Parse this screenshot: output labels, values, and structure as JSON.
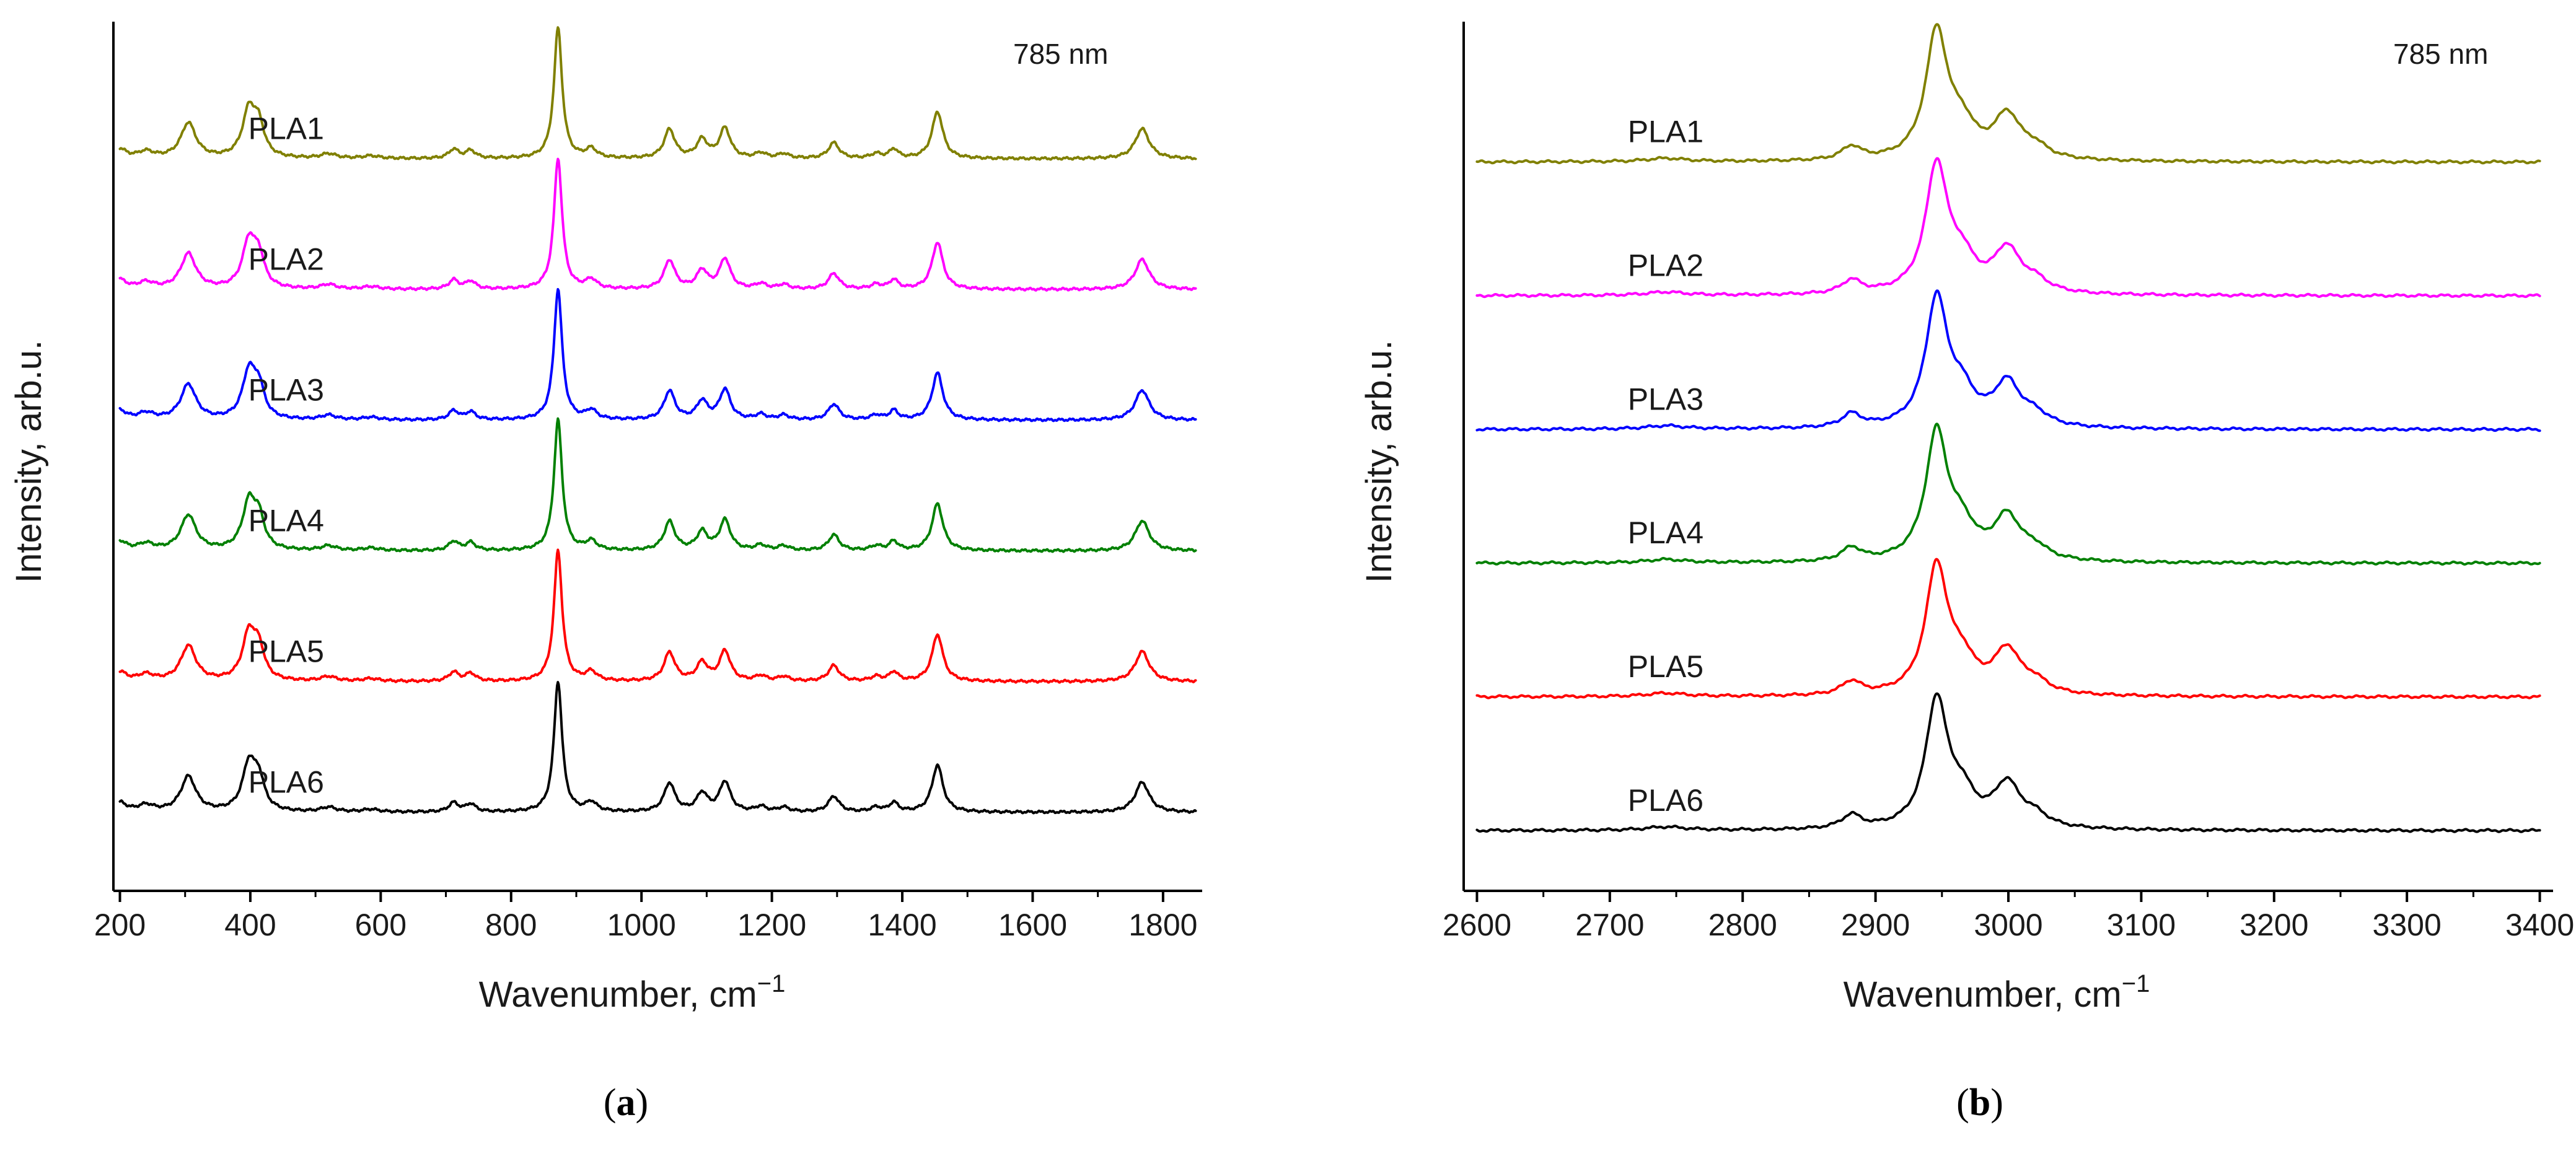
{
  "chart_data": [
    {
      "type": "line",
      "panel": "a",
      "panel_label": "a",
      "annotation": "785 nm",
      "xlabel": "Wavenumber, cm",
      "xlabel_sup": "−1",
      "ylabel": "Intensity, arb.u.",
      "xlim": [
        190,
        1860
      ],
      "ylim": [
        -0.6,
        6.05
      ],
      "xticks": [
        200,
        400,
        600,
        800,
        1000,
        1200,
        1400,
        1600,
        1800
      ],
      "xtick_labels": [
        "200",
        "400",
        "600",
        "800",
        "1000",
        "1200",
        "1400",
        "1600",
        "1800"
      ],
      "x_range": [
        200,
        1850
      ],
      "peaks": [
        {
          "x": 200,
          "h": 0.07,
          "w": 12
        },
        {
          "x": 240,
          "h": 0.05,
          "w": 15
        },
        {
          "x": 305,
          "h": 0.27,
          "w": 14
        },
        {
          "x": 398,
          "h": 0.36,
          "w": 12
        },
        {
          "x": 413,
          "h": 0.22,
          "w": 10
        },
        {
          "x": 520,
          "h": 0.035,
          "w": 14
        },
        {
          "x": 585,
          "h": 0.02,
          "w": 15
        },
        {
          "x": 712,
          "h": 0.07,
          "w": 9
        },
        {
          "x": 738,
          "h": 0.06,
          "w": 9
        },
        {
          "x": 872,
          "h": 1.0,
          "w": 7.5
        },
        {
          "x": 923,
          "h": 0.07,
          "w": 10
        },
        {
          "x": 1043,
          "h": 0.22,
          "w": 10
        },
        {
          "x": 1093,
          "h": 0.14,
          "w": 10
        },
        {
          "x": 1128,
          "h": 0.23,
          "w": 10
        },
        {
          "x": 1183,
          "h": 0.04,
          "w": 10
        },
        {
          "x": 1218,
          "h": 0.035,
          "w": 10
        },
        {
          "x": 1295,
          "h": 0.12,
          "w": 10
        },
        {
          "x": 1360,
          "h": 0.035,
          "w": 10
        },
        {
          "x": 1387,
          "h": 0.07,
          "w": 8
        },
        {
          "x": 1454,
          "h": 0.36,
          "w": 10
        },
        {
          "x": 1768,
          "h": 0.23,
          "w": 13
        }
      ],
      "series": [
        {
          "name": "PLA1",
          "offset": 5,
          "color": "#808000",
          "label_x": 455
        },
        {
          "name": "PLA2",
          "offset": 4,
          "color": "#ff00ff",
          "label_x": 455
        },
        {
          "name": "PLA3",
          "offset": 3,
          "color": "#0000ff",
          "label_x": 455
        },
        {
          "name": "PLA4",
          "offset": 2,
          "color": "#008000",
          "label_x": 455
        },
        {
          "name": "PLA5",
          "offset": 1,
          "color": "#ff0000",
          "label_x": 455
        },
        {
          "name": "PLA6",
          "offset": 0,
          "color": "#000000",
          "label_x": 455
        }
      ]
    },
    {
      "type": "line",
      "panel": "b",
      "panel_label": "b",
      "annotation": "785 nm",
      "xlabel": "Wavenumber, cm",
      "xlabel_sup": "−1",
      "ylabel": "Intensity, arb.u.",
      "xlim": [
        2590,
        3410
      ],
      "ylim": [
        -0.45,
        6.05
      ],
      "xticks": [
        2600,
        2700,
        2800,
        2900,
        3000,
        3100,
        3200,
        3300,
        3400
      ],
      "xtick_labels": [
        "2600",
        "2700",
        "2800",
        "2900",
        "3000",
        "3100",
        "3200",
        "3300",
        "3400"
      ],
      "x_range": [
        2600,
        3400
      ],
      "peaks": [
        {
          "x": 2742,
          "h": 0.025,
          "w": 18
        },
        {
          "x": 2882,
          "h": 0.1,
          "w": 9
        },
        {
          "x": 2946,
          "h": 0.95,
          "w": 10
        },
        {
          "x": 2965,
          "h": 0.22,
          "w": 12
        },
        {
          "x": 2999,
          "h": 0.32,
          "w": 12
        },
        {
          "x": 3020,
          "h": 0.08,
          "w": 12
        }
      ],
      "series": [
        {
          "name": "PLA1",
          "offset": 5,
          "color": "#808000",
          "label_x": 2742
        },
        {
          "name": "PLA2",
          "offset": 4,
          "color": "#ff00ff",
          "label_x": 2742
        },
        {
          "name": "PLA3",
          "offset": 3,
          "color": "#0000ff",
          "label_x": 2742
        },
        {
          "name": "PLA4",
          "offset": 2,
          "color": "#008000",
          "label_x": 2742
        },
        {
          "name": "PLA5",
          "offset": 1,
          "color": "#ff0000",
          "label_x": 2742
        },
        {
          "name": "PLA6",
          "offset": 0,
          "color": "#000000",
          "label_x": 2742
        }
      ]
    }
  ]
}
